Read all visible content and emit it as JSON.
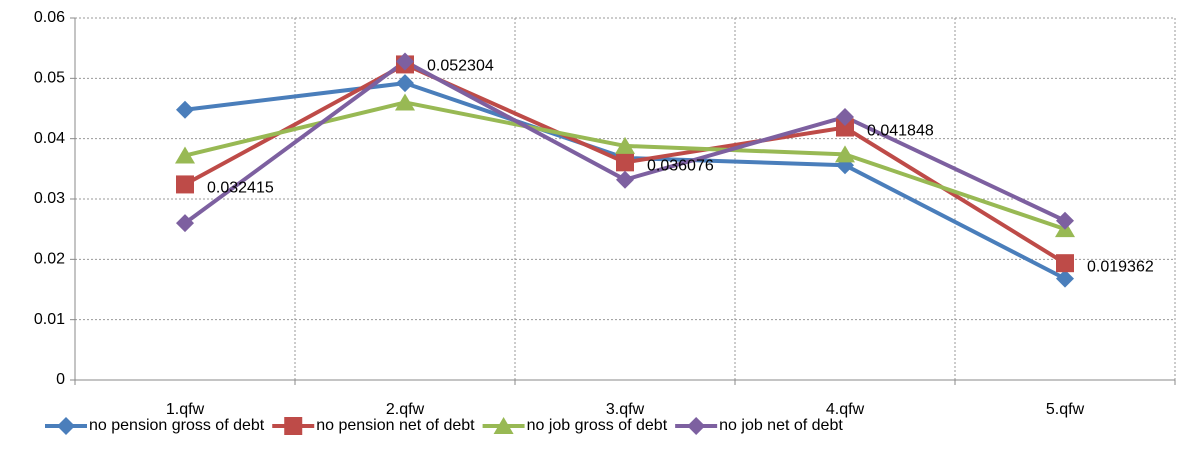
{
  "chart_data": {
    "type": "line",
    "categories": [
      "1.qfw",
      "2.qfw",
      "3.qfw",
      "4.qfw",
      "5.qfw"
    ],
    "series": [
      {
        "name": "no pension gross of debt",
        "color": "#4a7ebb",
        "marker": "diamond",
        "values": [
          0.0448,
          0.0492,
          0.0368,
          0.0356,
          0.0168
        ]
      },
      {
        "name": "no pension net of debt",
        "color": "#be4b48",
        "marker": "square",
        "labels": true,
        "values": [
          0.032415,
          0.052304,
          0.036076,
          0.041848,
          0.019362
        ]
      },
      {
        "name": "no job gross of debt",
        "color": "#98b954",
        "marker": "triangle",
        "values": [
          0.0372,
          0.046,
          0.0388,
          0.0374,
          0.025
        ]
      },
      {
        "name": "no job net of debt",
        "color": "#7d60a0",
        "marker": "diamond",
        "values": [
          0.026,
          0.0528,
          0.0332,
          0.0436,
          0.0264
        ]
      }
    ],
    "ylim": [
      0,
      0.06
    ],
    "yticks": [
      0,
      0.01,
      0.02,
      0.03,
      0.04,
      0.05,
      0.06
    ],
    "grid": true,
    "legend": "bottom"
  }
}
